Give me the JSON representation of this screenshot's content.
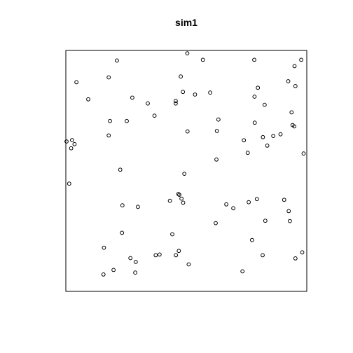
{
  "chart_data": {
    "type": "scatter",
    "title": "sim1",
    "xlabel": "",
    "ylabel": "",
    "xlim": [
      0,
      1
    ],
    "ylim": [
      0,
      1
    ],
    "grid": false,
    "axes_ticks": false,
    "marker": "open-circle",
    "marker_color": "#000000",
    "points": [
      [
        0.212,
        0.958
      ],
      [
        0.504,
        0.988
      ],
      [
        0.569,
        0.961
      ],
      [
        0.782,
        0.961
      ],
      [
        0.977,
        0.961
      ],
      [
        0.949,
        0.935
      ],
      [
        0.044,
        0.868
      ],
      [
        0.178,
        0.888
      ],
      [
        0.477,
        0.892
      ],
      [
        0.923,
        0.872
      ],
      [
        0.953,
        0.852
      ],
      [
        0.797,
        0.845
      ],
      [
        0.486,
        0.828
      ],
      [
        0.536,
        0.817
      ],
      [
        0.599,
        0.825
      ],
      [
        0.783,
        0.808
      ],
      [
        0.276,
        0.804
      ],
      [
        0.093,
        0.797
      ],
      [
        0.456,
        0.79
      ],
      [
        0.456,
        0.78
      ],
      [
        0.34,
        0.78
      ],
      [
        0.825,
        0.774
      ],
      [
        0.368,
        0.729
      ],
      [
        0.633,
        0.713
      ],
      [
        0.183,
        0.707
      ],
      [
        0.253,
        0.707
      ],
      [
        0.784,
        0.7
      ],
      [
        0.937,
        0.743
      ],
      [
        0.941,
        0.69
      ],
      [
        0.948,
        0.685
      ],
      [
        0.505,
        0.664
      ],
      [
        0.627,
        0.666
      ],
      [
        0.178,
        0.647
      ],
      [
        0.003,
        0.622
      ],
      [
        0.026,
        0.628
      ],
      [
        0.036,
        0.611
      ],
      [
        0.022,
        0.594
      ],
      [
        0.739,
        0.627
      ],
      [
        0.861,
        0.645
      ],
      [
        0.836,
        0.605
      ],
      [
        0.891,
        0.652
      ],
      [
        0.818,
        0.64
      ],
      [
        0.755,
        0.575
      ],
      [
        0.625,
        0.547
      ],
      [
        0.987,
        0.572
      ],
      [
        0.226,
        0.505
      ],
      [
        0.492,
        0.488
      ],
      [
        0.014,
        0.447
      ],
      [
        0.467,
        0.404
      ],
      [
        0.471,
        0.401
      ],
      [
        0.48,
        0.385
      ],
      [
        0.432,
        0.376
      ],
      [
        0.487,
        0.368
      ],
      [
        0.235,
        0.357
      ],
      [
        0.299,
        0.351
      ],
      [
        0.666,
        0.361
      ],
      [
        0.695,
        0.345
      ],
      [
        0.759,
        0.37
      ],
      [
        0.793,
        0.383
      ],
      [
        0.906,
        0.38
      ],
      [
        0.925,
        0.333
      ],
      [
        0.93,
        0.292
      ],
      [
        0.828,
        0.293
      ],
      [
        0.622,
        0.283
      ],
      [
        0.233,
        0.243
      ],
      [
        0.442,
        0.237
      ],
      [
        0.773,
        0.213
      ],
      [
        0.158,
        0.181
      ],
      [
        0.469,
        0.168
      ],
      [
        0.457,
        0.15
      ],
      [
        0.389,
        0.153
      ],
      [
        0.373,
        0.15
      ],
      [
        0.953,
        0.137
      ],
      [
        0.981,
        0.162
      ],
      [
        0.817,
        0.15
      ],
      [
        0.268,
        0.138
      ],
      [
        0.29,
        0.122
      ],
      [
        0.51,
        0.112
      ],
      [
        0.198,
        0.089
      ],
      [
        0.156,
        0.07
      ],
      [
        0.288,
        0.078
      ],
      [
        0.733,
        0.083
      ]
    ]
  }
}
